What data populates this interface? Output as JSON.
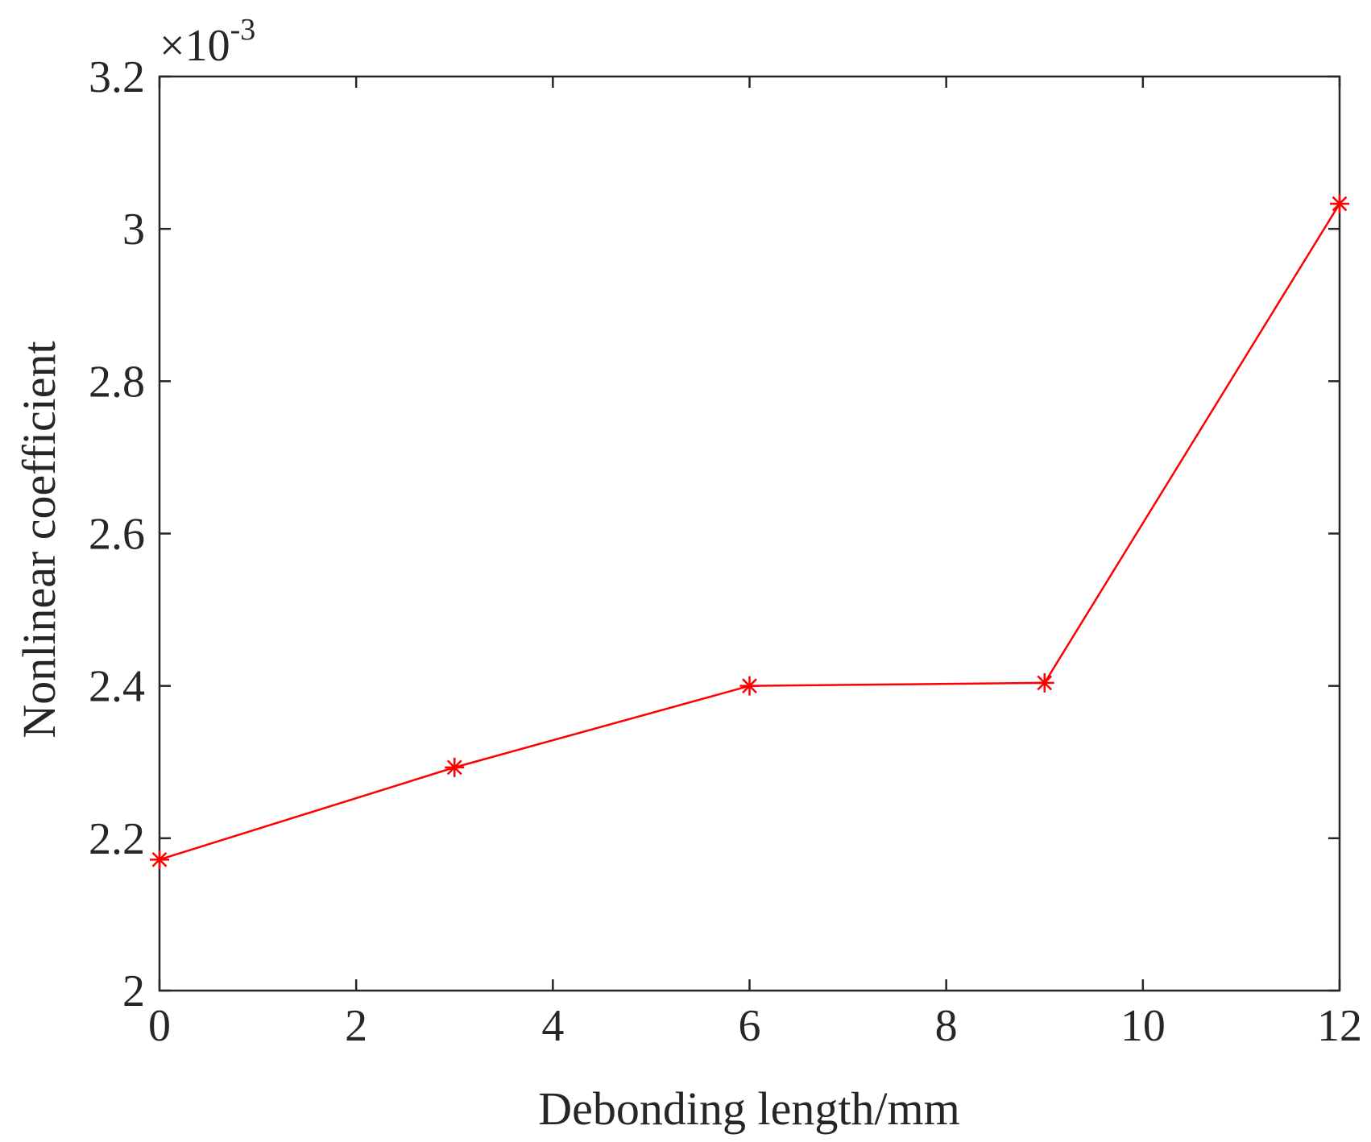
{
  "chart_data": {
    "type": "line",
    "xlabel": "Debonding length/mm",
    "ylabel": "Nonlinear coefficient",
    "y_multiplier": {
      "base": "×10",
      "exponent": "-3"
    },
    "xlim": [
      0,
      12
    ],
    "ylim": [
      2.0,
      3.2
    ],
    "x_ticks": [
      "0",
      "2",
      "4",
      "6",
      "8",
      "10",
      "12"
    ],
    "y_ticks": [
      "2",
      "2.2",
      "2.4",
      "2.6",
      "2.8",
      "3",
      "3.2"
    ],
    "grid": false,
    "marker": "asterisk",
    "line_color": "#ff0000",
    "x": [
      0,
      3,
      6,
      9,
      12
    ],
    "y": [
      2.172,
      2.293,
      2.4,
      2.404,
      3.033
    ]
  }
}
